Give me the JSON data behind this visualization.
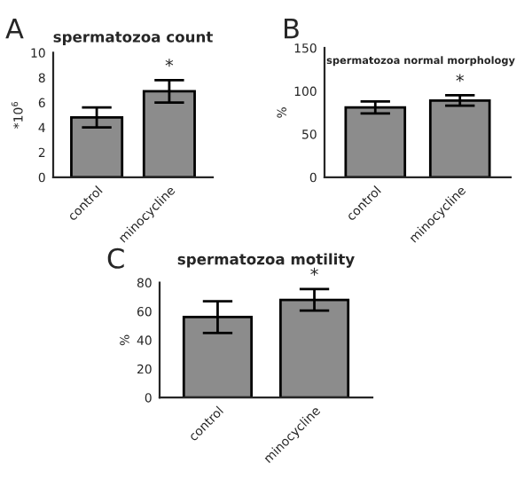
{
  "chart_data": [
    {
      "type": "bar",
      "title": "spermatozoa count",
      "ylabel": "*10$^{6}$",
      "categories": [
        "control",
        "minocycline"
      ],
      "values": [
        4.8,
        6.9
      ],
      "errors": [
        0.8,
        0.9
      ],
      "color": "#8c8c8c",
      "ylim": [
        0,
        10
      ],
      "yticks": [
        0,
        2,
        4,
        6,
        8,
        10
      ],
      "annotations": [
        "A",
        "*"
      ]
    },
    {
      "type": "bar",
      "title": "spermatozoa normal morphology",
      "ylabel": "%",
      "categories": [
        "control",
        "minocycline"
      ],
      "values": [
        81,
        89
      ],
      "errors": [
        7,
        6
      ],
      "color": "#8c8c8c",
      "ylim": [
        0,
        150
      ],
      "yticks": [
        0,
        50,
        100,
        150
      ],
      "annotations": [
        "B",
        "*"
      ]
    },
    {
      "type": "bar",
      "title": "spermatozoa motility",
      "ylabel": "%",
      "categories": [
        "control",
        "minocycline"
      ],
      "values": [
        56,
        68
      ],
      "errors": [
        11,
        7.5
      ],
      "color": "#8c8c8c",
      "ylim": [
        0,
        80
      ],
      "yticks": [
        0,
        20,
        40,
        60,
        80
      ],
      "annotations": [
        "C",
        "*"
      ]
    }
  ]
}
